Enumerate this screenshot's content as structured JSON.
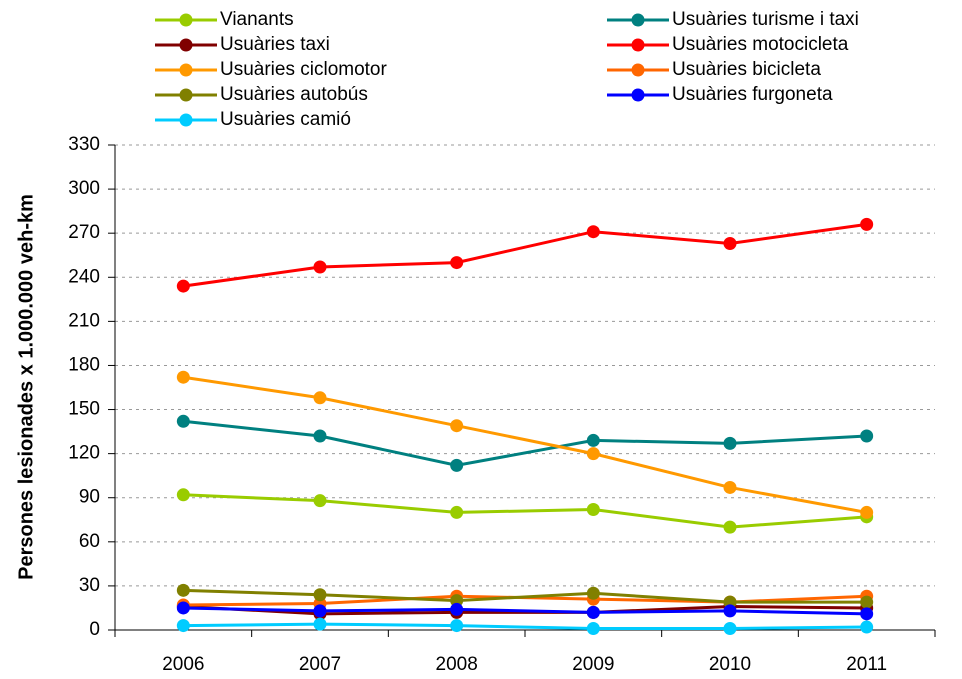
{
  "chart_data": {
    "type": "line",
    "y_label": "Persones lesionades x 1.000.000 veh-km",
    "categories": [
      "2006",
      "2007",
      "2008",
      "2009",
      "2010",
      "2011"
    ],
    "series": [
      {
        "name": "Vianants",
        "color": "#99cc00",
        "values": [
          92,
          88,
          80,
          82,
          70,
          77
        ]
      },
      {
        "name": "Usuàries turisme i taxi",
        "color": "#008080",
        "values": [
          142,
          132,
          112,
          129,
          127,
          132
        ]
      },
      {
        "name": "Usuàries taxi",
        "color": "#800000",
        "values": [
          16,
          11,
          12,
          12,
          16,
          15
        ]
      },
      {
        "name": "Usuàries motocicleta",
        "color": "#ff0000",
        "values": [
          234,
          247,
          250,
          271,
          263,
          276
        ]
      },
      {
        "name": "Usuàries ciclomotor",
        "color": "#ff9900",
        "values": [
          172,
          158,
          139,
          120,
          97,
          80
        ]
      },
      {
        "name": "Usuàries bicicleta",
        "color": "#ff6600",
        "values": [
          17,
          18,
          23,
          21,
          19,
          23
        ]
      },
      {
        "name": "Usuàries autobús",
        "color": "#808000",
        "values": [
          27,
          24,
          20,
          25,
          19,
          19
        ]
      },
      {
        "name": "Usuàries furgoneta",
        "color": "#0000ff",
        "values": [
          15,
          13,
          14,
          12,
          13,
          11
        ]
      },
      {
        "name": "Usuàries camió",
        "color": "#00ccff",
        "values": [
          3,
          4,
          3,
          1,
          1,
          2
        ]
      }
    ],
    "ylim": [
      0,
      330
    ],
    "yticks": [
      0,
      30,
      60,
      90,
      120,
      150,
      180,
      210,
      240,
      270,
      300,
      330
    ],
    "grid": true
  }
}
